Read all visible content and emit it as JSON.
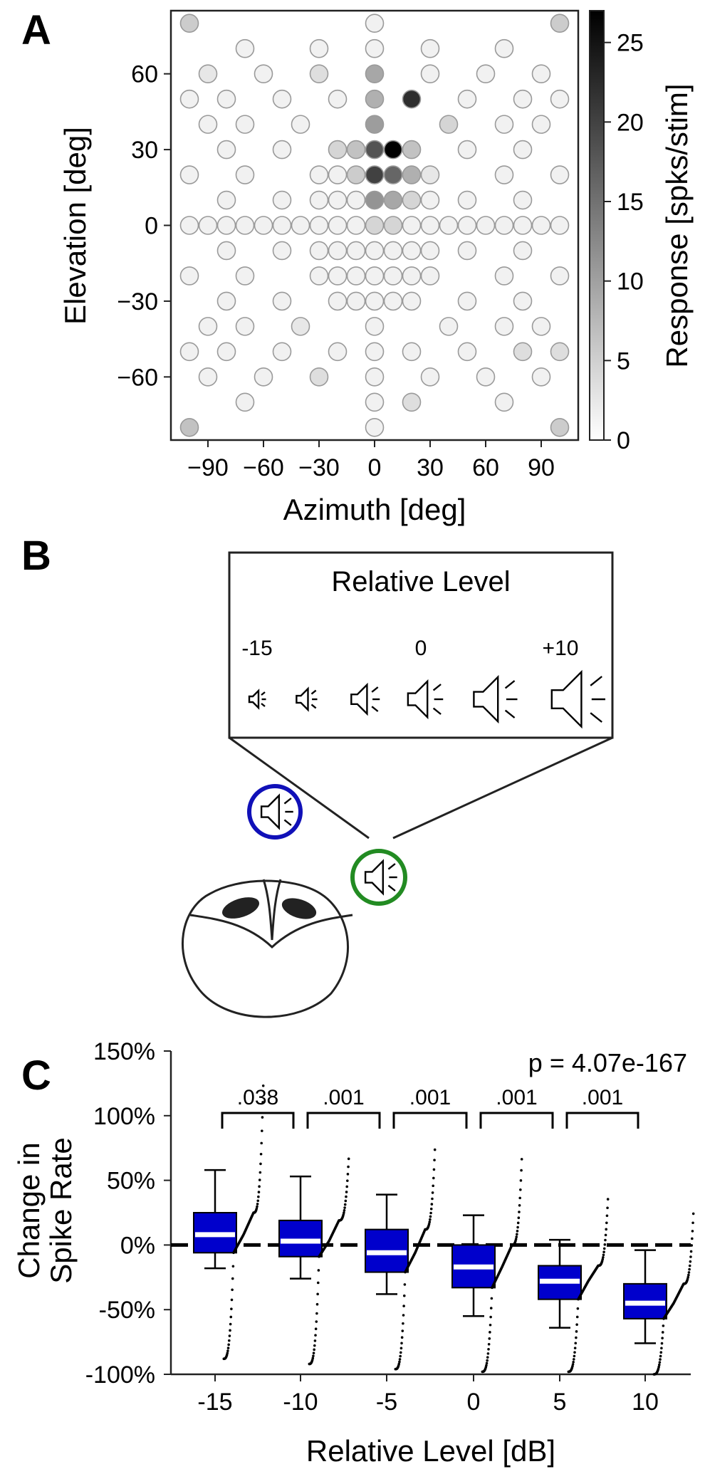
{
  "panels": {
    "a": "A",
    "b": "B",
    "c": "C"
  },
  "panel_a": {
    "xlabel": "Azimuth [deg]",
    "ylabel": "Elevation [deg]",
    "xticks": [
      "−90",
      "−60",
      "−30",
      "0",
      "30",
      "60",
      "90"
    ],
    "yticks": [
      "60",
      "30",
      "0",
      "−30",
      "−60"
    ],
    "colorbar_label": "Response [spks/stim]",
    "colorbar_ticks": [
      "25",
      "20",
      "15",
      "10",
      "5",
      "0"
    ]
  },
  "panel_b": {
    "title": "Relative Level",
    "level_labels": [
      "-15",
      "0",
      "+10"
    ],
    "speaker_icon": "speaker-icon",
    "head_icon": "owl-head-icon",
    "colors": {
      "blue": "#1010b8",
      "green": "#228b22"
    }
  },
  "panel_c": {
    "p_value": "p = 4.07e-167",
    "ylabel_line1": "Change in",
    "ylabel_line2": "Spike Rate",
    "xlabel": "Relative Level [dB]",
    "yticks": [
      "150%",
      "100%",
      "50%",
      "0%",
      "-50%",
      "-100%"
    ],
    "xticks": [
      "-15",
      "-10",
      "-5",
      "0",
      "5",
      "10"
    ],
    "sig_labels": [
      ".038",
      ".001",
      ".001",
      ".001",
      ".001"
    ]
  },
  "chart_data": [
    {
      "type": "heatmap",
      "xlabel": "Azimuth [deg]",
      "ylabel": "Elevation [deg]",
      "xlim": [
        -110,
        110
      ],
      "ylim": [
        -85,
        85
      ],
      "colorbar": {
        "label": "Response [spks/stim]",
        "range": [
          0,
          27
        ],
        "colormap": "gray_r"
      },
      "points": [
        {
          "az": -100,
          "el": 80,
          "v": 5
        },
        {
          "az": 0,
          "el": 80,
          "v": 1
        },
        {
          "az": 100,
          "el": 80,
          "v": 5
        },
        {
          "az": -70,
          "el": 70,
          "v": 1
        },
        {
          "az": -30,
          "el": 70,
          "v": 1
        },
        {
          "az": 0,
          "el": 70,
          "v": 1
        },
        {
          "az": 30,
          "el": 70,
          "v": 1
        },
        {
          "az": 70,
          "el": 70,
          "v": 1
        },
        {
          "az": -90,
          "el": 60,
          "v": 2
        },
        {
          "az": -60,
          "el": 60,
          "v": 1
        },
        {
          "az": -30,
          "el": 60,
          "v": 3
        },
        {
          "az": 0,
          "el": 60,
          "v": 9
        },
        {
          "az": 30,
          "el": 60,
          "v": 1
        },
        {
          "az": 60,
          "el": 60,
          "v": 1
        },
        {
          "az": 90,
          "el": 60,
          "v": 1
        },
        {
          "az": -100,
          "el": 50,
          "v": 1
        },
        {
          "az": -80,
          "el": 50,
          "v": 1
        },
        {
          "az": -50,
          "el": 50,
          "v": 1
        },
        {
          "az": -20,
          "el": 50,
          "v": 1
        },
        {
          "az": 0,
          "el": 50,
          "v": 8
        },
        {
          "az": 20,
          "el": 50,
          "v": 22
        },
        {
          "az": 50,
          "el": 50,
          "v": 1
        },
        {
          "az": 80,
          "el": 50,
          "v": 1
        },
        {
          "az": 100,
          "el": 50,
          "v": 1
        },
        {
          "az": -90,
          "el": 40,
          "v": 1
        },
        {
          "az": -70,
          "el": 40,
          "v": 1
        },
        {
          "az": -40,
          "el": 40,
          "v": 1
        },
        {
          "az": 0,
          "el": 40,
          "v": 10
        },
        {
          "az": 40,
          "el": 40,
          "v": 4
        },
        {
          "az": 70,
          "el": 40,
          "v": 1
        },
        {
          "az": 90,
          "el": 40,
          "v": 1
        },
        {
          "az": -80,
          "el": 30,
          "v": 1
        },
        {
          "az": -50,
          "el": 30,
          "v": 1
        },
        {
          "az": -20,
          "el": 30,
          "v": 4
        },
        {
          "az": -10,
          "el": 30,
          "v": 6
        },
        {
          "az": 0,
          "el": 30,
          "v": 18
        },
        {
          "az": 10,
          "el": 30,
          "v": 27
        },
        {
          "az": 20,
          "el": 30,
          "v": 6
        },
        {
          "az": 50,
          "el": 30,
          "v": 1
        },
        {
          "az": 80,
          "el": 30,
          "v": 1
        },
        {
          "az": -100,
          "el": 20,
          "v": 1
        },
        {
          "az": -70,
          "el": 20,
          "v": 1
        },
        {
          "az": -30,
          "el": 20,
          "v": 1
        },
        {
          "az": -20,
          "el": 20,
          "v": 1
        },
        {
          "az": -10,
          "el": 20,
          "v": 5
        },
        {
          "az": 0,
          "el": 20,
          "v": 20
        },
        {
          "az": 10,
          "el": 20,
          "v": 16
        },
        {
          "az": 20,
          "el": 20,
          "v": 8
        },
        {
          "az": 30,
          "el": 20,
          "v": 2
        },
        {
          "az": 70,
          "el": 20,
          "v": 1
        },
        {
          "az": 100,
          "el": 20,
          "v": 1
        },
        {
          "az": -80,
          "el": 10,
          "v": 1
        },
        {
          "az": -50,
          "el": 10,
          "v": 1
        },
        {
          "az": -30,
          "el": 10,
          "v": 1
        },
        {
          "az": -20,
          "el": 10,
          "v": 1
        },
        {
          "az": -10,
          "el": 10,
          "v": 1
        },
        {
          "az": 0,
          "el": 10,
          "v": 11
        },
        {
          "az": 10,
          "el": 10,
          "v": 9
        },
        {
          "az": 20,
          "el": 10,
          "v": 4
        },
        {
          "az": 30,
          "el": 10,
          "v": 1
        },
        {
          "az": 50,
          "el": 10,
          "v": 1
        },
        {
          "az": 80,
          "el": 10,
          "v": 1
        },
        {
          "az": -100,
          "el": 0,
          "v": 1
        },
        {
          "az": -90,
          "el": 0,
          "v": 1
        },
        {
          "az": -80,
          "el": 0,
          "v": 1
        },
        {
          "az": -70,
          "el": 0,
          "v": 1
        },
        {
          "az": -60,
          "el": 0,
          "v": 1
        },
        {
          "az": -50,
          "el": 0,
          "v": 1
        },
        {
          "az": -40,
          "el": 0,
          "v": 1
        },
        {
          "az": -30,
          "el": 0,
          "v": 1
        },
        {
          "az": -20,
          "el": 0,
          "v": 1
        },
        {
          "az": -10,
          "el": 0,
          "v": 1
        },
        {
          "az": 0,
          "el": 0,
          "v": 4
        },
        {
          "az": 10,
          "el": 0,
          "v": 4
        },
        {
          "az": 20,
          "el": 0,
          "v": 1
        },
        {
          "az": 30,
          "el": 0,
          "v": 1
        },
        {
          "az": 40,
          "el": 0,
          "v": 1
        },
        {
          "az": 50,
          "el": 0,
          "v": 1
        },
        {
          "az": 60,
          "el": 0,
          "v": 1
        },
        {
          "az": 70,
          "el": 0,
          "v": 1
        },
        {
          "az": 80,
          "el": 0,
          "v": 1
        },
        {
          "az": 90,
          "el": 0,
          "v": 1
        },
        {
          "az": 100,
          "el": 0,
          "v": 1
        },
        {
          "az": -80,
          "el": -10,
          "v": 1
        },
        {
          "az": -50,
          "el": -10,
          "v": 1
        },
        {
          "az": -30,
          "el": -10,
          "v": 1
        },
        {
          "az": -20,
          "el": -10,
          "v": 1
        },
        {
          "az": -10,
          "el": -10,
          "v": 1
        },
        {
          "az": 0,
          "el": -10,
          "v": 1
        },
        {
          "az": 10,
          "el": -10,
          "v": 1
        },
        {
          "az": 20,
          "el": -10,
          "v": 1
        },
        {
          "az": 30,
          "el": -10,
          "v": 1
        },
        {
          "az": 50,
          "el": -10,
          "v": 1
        },
        {
          "az": 80,
          "el": -10,
          "v": 1
        },
        {
          "az": -100,
          "el": -20,
          "v": 1
        },
        {
          "az": -70,
          "el": -20,
          "v": 1
        },
        {
          "az": -30,
          "el": -20,
          "v": 1
        },
        {
          "az": -20,
          "el": -20,
          "v": 1
        },
        {
          "az": -10,
          "el": -20,
          "v": 1
        },
        {
          "az": 0,
          "el": -20,
          "v": 1
        },
        {
          "az": 10,
          "el": -20,
          "v": 1
        },
        {
          "az": 20,
          "el": -20,
          "v": 1
        },
        {
          "az": 30,
          "el": -20,
          "v": 1
        },
        {
          "az": 70,
          "el": -20,
          "v": 1
        },
        {
          "az": 100,
          "el": -20,
          "v": 1
        },
        {
          "az": -80,
          "el": -30,
          "v": 1
        },
        {
          "az": -50,
          "el": -30,
          "v": 1
        },
        {
          "az": -20,
          "el": -30,
          "v": 1
        },
        {
          "az": -10,
          "el": -30,
          "v": 1
        },
        {
          "az": 0,
          "el": -30,
          "v": 1
        },
        {
          "az": 10,
          "el": -30,
          "v": 1
        },
        {
          "az": 20,
          "el": -30,
          "v": 1
        },
        {
          "az": 50,
          "el": -30,
          "v": 1
        },
        {
          "az": 80,
          "el": -30,
          "v": 1
        },
        {
          "az": -90,
          "el": -40,
          "v": 1
        },
        {
          "az": -70,
          "el": -40,
          "v": 1
        },
        {
          "az": -40,
          "el": -40,
          "v": 2
        },
        {
          "az": 0,
          "el": -40,
          "v": 1
        },
        {
          "az": 40,
          "el": -40,
          "v": 1
        },
        {
          "az": 70,
          "el": -40,
          "v": 1
        },
        {
          "az": 90,
          "el": -40,
          "v": 1
        },
        {
          "az": -100,
          "el": -50,
          "v": 1
        },
        {
          "az": -80,
          "el": -50,
          "v": 1
        },
        {
          "az": -50,
          "el": -50,
          "v": 1
        },
        {
          "az": -20,
          "el": -50,
          "v": 1
        },
        {
          "az": 0,
          "el": -50,
          "v": 1
        },
        {
          "az": 20,
          "el": -50,
          "v": 1
        },
        {
          "az": 50,
          "el": -50,
          "v": 1
        },
        {
          "az": 80,
          "el": -50,
          "v": 3
        },
        {
          "az": 100,
          "el": -50,
          "v": 3
        },
        {
          "az": -90,
          "el": -60,
          "v": 1
        },
        {
          "az": -60,
          "el": -60,
          "v": 1
        },
        {
          "az": -30,
          "el": -60,
          "v": 3
        },
        {
          "az": 0,
          "el": -60,
          "v": 1
        },
        {
          "az": 30,
          "el": -60,
          "v": 1
        },
        {
          "az": 60,
          "el": -60,
          "v": 1
        },
        {
          "az": 90,
          "el": -60,
          "v": 1
        },
        {
          "az": -70,
          "el": -70,
          "v": 1
        },
        {
          "az": 0,
          "el": -70,
          "v": 1
        },
        {
          "az": 20,
          "el": -70,
          "v": 3
        },
        {
          "az": 70,
          "el": -70,
          "v": 1
        },
        {
          "az": -100,
          "el": -80,
          "v": 6
        },
        {
          "az": 0,
          "el": -80,
          "v": 1
        },
        {
          "az": 100,
          "el": -80,
          "v": 5
        }
      ]
    },
    {
      "type": "box",
      "title": "",
      "xlabel": "Relative Level [dB]",
      "ylabel": "Change in Spike Rate",
      "ylim": [
        -100,
        150
      ],
      "categories": [
        "-15",
        "-10",
        "-5",
        "0",
        "5",
        "10"
      ],
      "boxes": [
        {
          "whisker_low": -18,
          "q1": -6,
          "median": 8,
          "q3": 25,
          "whisker_high": 58,
          "points_min": -88,
          "points_max": 130
        },
        {
          "whisker_low": -26,
          "q1": -9,
          "median": 3,
          "q3": 19,
          "whisker_high": 53,
          "points_min": -92,
          "points_max": 70
        },
        {
          "whisker_low": -38,
          "q1": -21,
          "median": -6,
          "q3": 12,
          "whisker_high": 39,
          "points_min": -96,
          "points_max": 78
        },
        {
          "whisker_low": -55,
          "q1": -33,
          "median": -17,
          "q3": 0,
          "whisker_high": 23,
          "points_min": -98,
          "points_max": 71
        },
        {
          "whisker_low": -64,
          "q1": -42,
          "median": -28,
          "q3": -16,
          "whisker_high": 4,
          "points_min": -98,
          "points_max": 39
        },
        {
          "whisker_low": -76,
          "q1": -57,
          "median": -45,
          "q3": -30,
          "whisker_high": -4,
          "points_min": -100,
          "points_max": 28
        }
      ],
      "reference_line": 0,
      "comparisons": [
        {
          "pair": [
            "-15",
            "-10"
          ],
          "p": ".038"
        },
        {
          "pair": [
            "-10",
            "-5"
          ],
          "p": ".001"
        },
        {
          "pair": [
            "-5",
            "0"
          ],
          "p": ".001"
        },
        {
          "pair": [
            "0",
            "5"
          ],
          "p": ".001"
        },
        {
          "pair": [
            "5",
            "10"
          ],
          "p": ".001"
        }
      ],
      "annotation": "p = 4.07e-167"
    }
  ]
}
